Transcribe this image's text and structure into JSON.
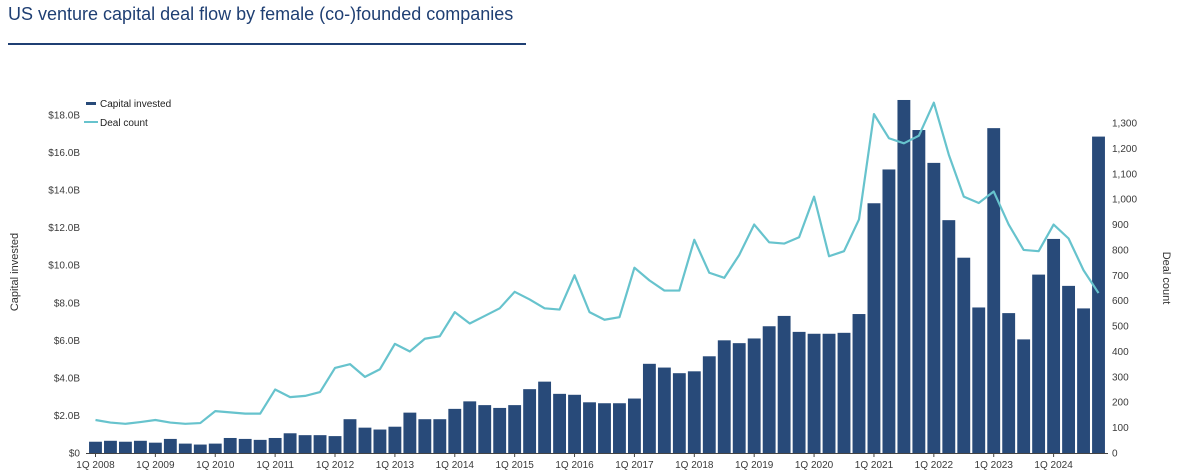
{
  "title": "US venture capital deal flow by female (co-)founded companies",
  "colors": {
    "capital_bar": "#284a79",
    "deal_line": "#67c3cd",
    "title": "#1f3f73",
    "axis": "#444444"
  },
  "chart_data": {
    "type": "bar",
    "title": "US venture capital deal flow by female (co-)founded companies",
    "x_tick_labels": [
      "1Q 2008",
      "1Q 2009",
      "1Q 2010",
      "1Q 2011",
      "1Q 2012",
      "1Q 2013",
      "1Q 2014",
      "1Q 2015",
      "1Q 2016",
      "1Q 2017",
      "1Q 2018",
      "1Q 2019",
      "1Q 2020",
      "1Q 2021",
      "1Q 2022",
      "1Q 2023",
      "1Q 2024"
    ],
    "ylabel_left": "Capital invested",
    "ylabel_right": "Deal count",
    "y_left_ticks": [
      "$0",
      "$2.0B",
      "$4.0B",
      "$6.0B",
      "$8.0B",
      "$10.0B",
      "$12.0B",
      "$14.0B",
      "$16.0B",
      "$18.0B"
    ],
    "y_left_lim": [
      0,
      18.0
    ],
    "y_right_ticks": [
      "0",
      "100",
      "200",
      "300",
      "400",
      "500",
      "600",
      "700",
      "800",
      "900",
      "1,000",
      "1,100",
      "1,200",
      "1,300"
    ],
    "y_right_lim": [
      0,
      1300
    ],
    "legend": {
      "position": "top-left",
      "entries": [
        "Capital invested",
        "Deal count"
      ]
    },
    "series": [
      {
        "name": "Capital invested",
        "type": "bar",
        "unit": "$B",
        "values": [
          0.6,
          0.65,
          0.6,
          0.65,
          0.55,
          0.75,
          0.5,
          0.45,
          0.5,
          0.8,
          0.75,
          0.7,
          0.8,
          1.05,
          0.95,
          0.95,
          0.9,
          1.8,
          1.35,
          1.25,
          1.4,
          2.15,
          1.8,
          1.8,
          2.35,
          2.75,
          2.55,
          2.4,
          2.55,
          3.4,
          3.8,
          3.15,
          3.1,
          2.7,
          2.65,
          2.65,
          2.9,
          4.75,
          4.55,
          4.25,
          4.35,
          5.15,
          6.0,
          5.85,
          6.1,
          6.75,
          7.3,
          6.45,
          6.35,
          6.35,
          6.4,
          7.4,
          13.3,
          15.1,
          18.8,
          17.2,
          15.45,
          12.4,
          10.4,
          7.75,
          17.3,
          7.45,
          6.05,
          9.5,
          11.4,
          8.9,
          7.7,
          16.85
        ]
      },
      {
        "name": "Deal count",
        "type": "line",
        "values": [
          130,
          120,
          115,
          122,
          130,
          120,
          115,
          118,
          165,
          160,
          155,
          155,
          250,
          220,
          225,
          240,
          335,
          350,
          300,
          330,
          430,
          400,
          450,
          460,
          555,
          510,
          540,
          570,
          635,
          605,
          570,
          565,
          700,
          555,
          525,
          535,
          730,
          680,
          640,
          640,
          840,
          710,
          690,
          780,
          900,
          830,
          825,
          850,
          1010,
          775,
          795,
          920,
          1335,
          1240,
          1220,
          1250,
          1380,
          1175,
          1010,
          985,
          1030,
          900,
          800,
          795,
          900,
          845,
          720,
          630
        ]
      }
    ]
  }
}
